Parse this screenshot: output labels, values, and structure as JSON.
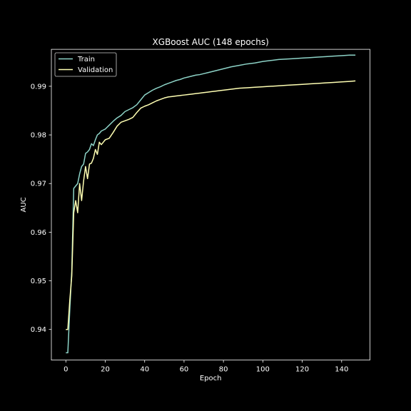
{
  "chart_data": {
    "type": "line",
    "title": "XGBoost AUC (148 epochs)",
    "xlabel": "Epoch",
    "ylabel": "AUC",
    "xlim": [
      -7.35,
      154.35
    ],
    "ylim": [
      0.9337,
      0.9976
    ],
    "xticks": [
      0,
      20,
      40,
      60,
      80,
      100,
      120,
      140
    ],
    "yticks": [
      0.94,
      0.95,
      0.96,
      0.97,
      0.98,
      0.99
    ],
    "ytick_labels": [
      "0.94",
      "0.95",
      "0.96",
      "0.97",
      "0.98",
      "0.99"
    ],
    "grid": false,
    "legend_position": "top-left",
    "colors": {
      "background": "#000000",
      "foreground": "#ffffff",
      "train": "#8dd3c7",
      "validation": "#ffffb3"
    },
    "series": [
      {
        "name": "Train",
        "x": [
          0,
          1,
          2,
          3,
          4,
          5,
          6,
          7,
          8,
          9,
          10,
          11,
          12,
          13,
          14,
          15,
          16,
          17,
          18,
          19,
          20,
          22,
          24,
          26,
          28,
          30,
          32,
          34,
          36,
          38,
          40,
          42,
          44,
          46,
          48,
          50,
          52,
          54,
          56,
          58,
          60,
          62,
          64,
          66,
          68,
          70,
          72,
          74,
          76,
          78,
          80,
          84,
          88,
          92,
          96,
          100,
          104,
          108,
          112,
          116,
          120,
          124,
          128,
          132,
          136,
          140,
          144,
          147
        ],
        "y": [
          0.9352,
          0.9352,
          0.944,
          0.952,
          0.969,
          0.9695,
          0.97,
          0.972,
          0.9735,
          0.974,
          0.9762,
          0.9765,
          0.977,
          0.9782,
          0.9778,
          0.979,
          0.98,
          0.9803,
          0.9808,
          0.981,
          0.9812,
          0.982,
          0.9828,
          0.9835,
          0.984,
          0.9848,
          0.9852,
          0.9856,
          0.9862,
          0.9872,
          0.9882,
          0.9887,
          0.9892,
          0.9896,
          0.9899,
          0.9903,
          0.9906,
          0.9909,
          0.9912,
          0.9914,
          0.9917,
          0.9919,
          0.9921,
          0.9923,
          0.9924,
          0.9926,
          0.9928,
          0.993,
          0.9932,
          0.9934,
          0.9936,
          0.994,
          0.9943,
          0.9946,
          0.9948,
          0.9951,
          0.9953,
          0.9955,
          0.9956,
          0.9957,
          0.9958,
          0.9959,
          0.996,
          0.9961,
          0.9962,
          0.9963,
          0.9964,
          0.9964
        ]
      },
      {
        "name": "Validation",
        "x": [
          0,
          1,
          2,
          3,
          4,
          5,
          6,
          7,
          8,
          9,
          10,
          11,
          12,
          13,
          14,
          15,
          16,
          17,
          18,
          19,
          20,
          22,
          24,
          26,
          28,
          30,
          32,
          34,
          36,
          38,
          40,
          42,
          44,
          46,
          48,
          50,
          52,
          54,
          56,
          58,
          60,
          62,
          64,
          66,
          68,
          70,
          72,
          74,
          76,
          78,
          80,
          84,
          88,
          92,
          96,
          100,
          104,
          108,
          112,
          116,
          120,
          124,
          128,
          132,
          136,
          140,
          144,
          147
        ],
        "y": [
          0.94,
          0.94,
          0.946,
          0.951,
          0.964,
          0.9665,
          0.964,
          0.97,
          0.9665,
          0.9705,
          0.9735,
          0.971,
          0.974,
          0.9742,
          0.9752,
          0.977,
          0.976,
          0.9785,
          0.978,
          0.9785,
          0.979,
          0.9793,
          0.9805,
          0.9818,
          0.9826,
          0.9829,
          0.9832,
          0.9836,
          0.9846,
          0.9855,
          0.9859,
          0.9862,
          0.9866,
          0.987,
          0.9873,
          0.9876,
          0.9878,
          0.9879,
          0.988,
          0.9881,
          0.9882,
          0.9883,
          0.9884,
          0.9885,
          0.9886,
          0.9887,
          0.9888,
          0.9889,
          0.989,
          0.9891,
          0.9892,
          0.9894,
          0.9896,
          0.9897,
          0.9898,
          0.9899,
          0.99,
          0.9901,
          0.9902,
          0.9903,
          0.9904,
          0.9905,
          0.9906,
          0.9907,
          0.9908,
          0.9909,
          0.991,
          0.9911
        ]
      }
    ]
  }
}
